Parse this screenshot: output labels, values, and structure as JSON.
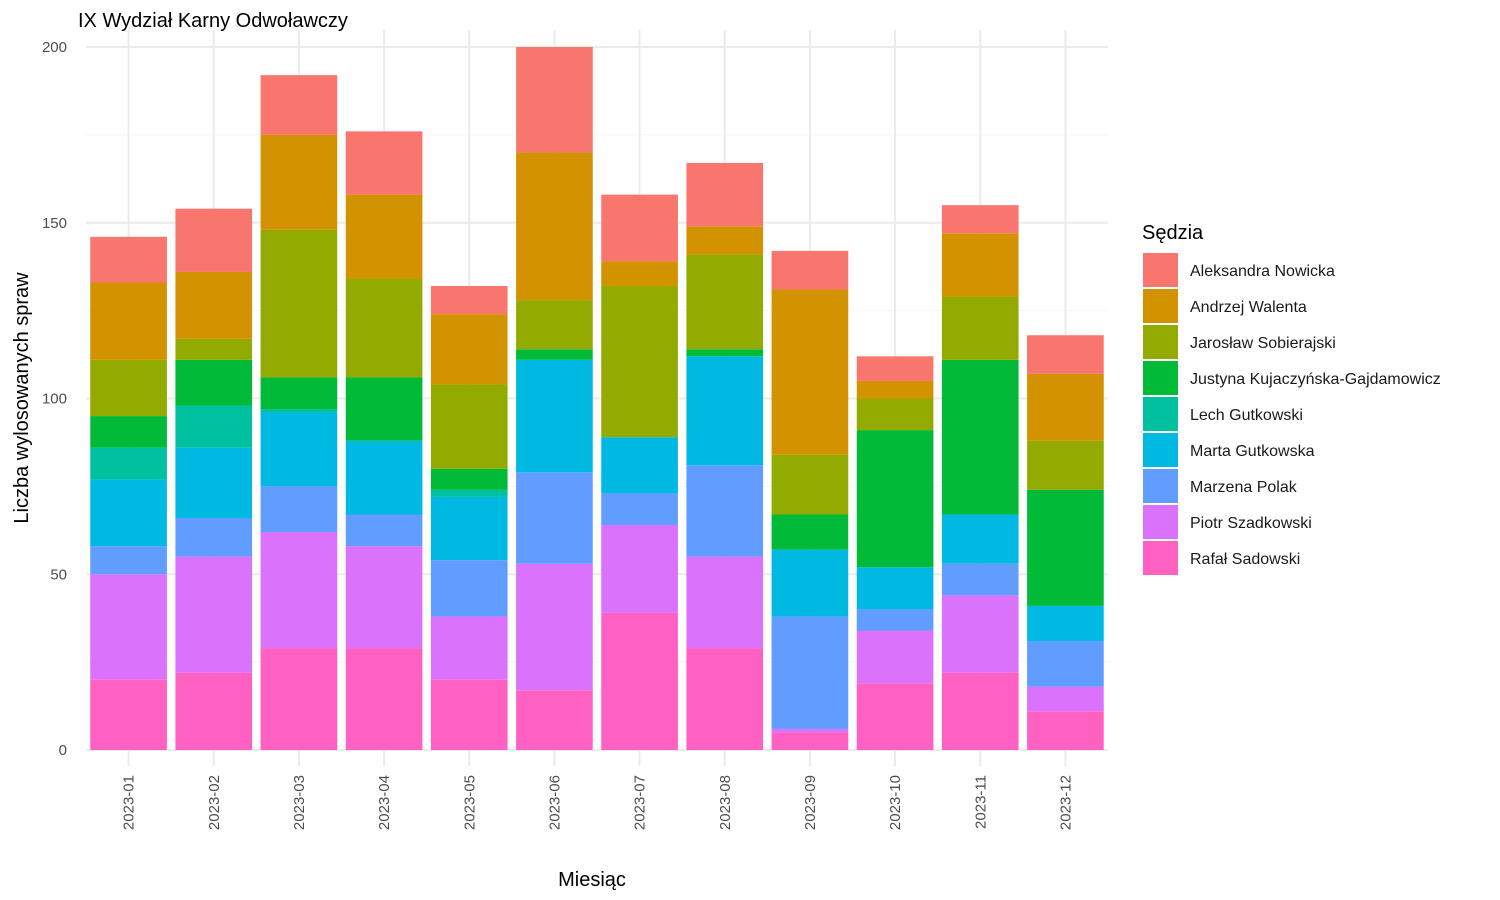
{
  "chart_data": {
    "type": "bar",
    "stacked": true,
    "title": "IX Wydział Karny Odwoławczy",
    "xlabel": "Miesiąc",
    "ylabel": "Liczba wylosowanych spraw",
    "ylim": [
      0,
      200
    ],
    "yticks": [
      0,
      50,
      100,
      150,
      200
    ],
    "grid": true,
    "legend_position": "right",
    "legend_title": "Sędzia",
    "categories": [
      "2023-01",
      "2023-02",
      "2023-03",
      "2023-04",
      "2023-05",
      "2023-06",
      "2023-07",
      "2023-08",
      "2023-09",
      "2023-10",
      "2023-11",
      "2023-12"
    ],
    "series": [
      {
        "name": "Aleksandra Nowicka",
        "color": "#F8766D",
        "values": [
          13,
          18,
          17,
          18,
          8,
          30,
          19,
          18,
          11,
          7,
          8,
          11
        ]
      },
      {
        "name": "Andrzej Walenta",
        "color": "#D39200",
        "values": [
          22,
          19,
          27,
          24,
          20,
          42,
          7,
          8,
          47,
          5,
          18,
          19
        ]
      },
      {
        "name": "Jarosław Sobierajski",
        "color": "#93AA00",
        "values": [
          16,
          6,
          42,
          28,
          24,
          14,
          43,
          27,
          17,
          9,
          18,
          14
        ]
      },
      {
        "name": "Justyna Kujaczyńska-Gajdamowicz",
        "color": "#00BA38",
        "values": [
          9,
          13,
          9,
          18,
          6,
          3,
          0,
          2,
          10,
          39,
          44,
          33
        ]
      },
      {
        "name": "Lech Gutkowski",
        "color": "#00C19F",
        "values": [
          9,
          12,
          1,
          0,
          2,
          0,
          0,
          0,
          0,
          0,
          0,
          0
        ]
      },
      {
        "name": "Marta Gutkowska",
        "color": "#00B9E3",
        "values": [
          19,
          20,
          21,
          21,
          18,
          32,
          16,
          31,
          19,
          12,
          14,
          10
        ]
      },
      {
        "name": "Marzena Polak",
        "color": "#619CFF",
        "values": [
          8,
          11,
          13,
          9,
          16,
          26,
          9,
          26,
          32,
          6,
          9,
          13
        ]
      },
      {
        "name": "Piotr Szadkowski",
        "color": "#DB72FB",
        "values": [
          30,
          33,
          33,
          29,
          18,
          36,
          25,
          26,
          1,
          15,
          22,
          7
        ]
      },
      {
        "name": "Rafał Sadowski",
        "color": "#FF61C3",
        "values": [
          20,
          22,
          29,
          29,
          20,
          17,
          39,
          29,
          5,
          19,
          22,
          11
        ]
      }
    ]
  }
}
